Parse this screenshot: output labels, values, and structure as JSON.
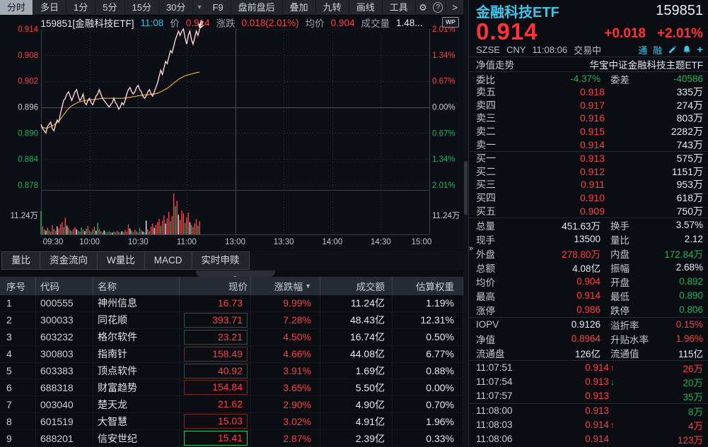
{
  "toolbar": {
    "periods": [
      "分时",
      "多日",
      "1分",
      "5分",
      "15分",
      "30分"
    ],
    "tools": [
      "F9",
      "盘前盘后",
      "叠加",
      "九转",
      "画线",
      "工具"
    ]
  },
  "icons": {
    "dropdown": "▾",
    "gear": "⚙",
    "help": "?",
    "collapse": ">",
    "expand": "»",
    "handle": "»",
    "sort_desc": "▼",
    "arrow_up": "↑",
    "arrow_down": "↓",
    "wp": "WP",
    "badge_tong": "通",
    "badge_rong": "融",
    "plus": "+"
  },
  "chart_info": {
    "symbol": "159851[金融科技ETF]",
    "time": "11:08",
    "price_label": "价",
    "price": "0.914",
    "change_label": "涨跌",
    "change": "0.018(2.01%)",
    "avg_label": "均价",
    "avg": "0.904",
    "vol_label": "成交量",
    "vol": "1.48..."
  },
  "chart_data": {
    "type": "line",
    "title": "159851 金融科技ETF 分时走势",
    "x_labels": [
      "09:30",
      "10:00",
      "10:30",
      "11:00",
      "13:00",
      "13:30",
      "14:00",
      "14:30",
      "15:00"
    ],
    "session_minutes": 240,
    "preclose": 0.896,
    "ylim": [
      0.878,
      0.914
    ],
    "price_ticks": [
      0.914,
      0.908,
      0.902,
      0.896,
      0.89,
      0.884,
      0.878
    ],
    "price_tick_labels": [
      "0.914",
      "0.908",
      "0.902",
      "0.896",
      "0.890",
      "0.884",
      "0.878"
    ],
    "pct_tick_labels": [
      "2.01%",
      "1.34%",
      "0.67%",
      "0.00%",
      "0.67%",
      "1.34%",
      "2.01%"
    ],
    "vol_max_label": "11.24万",
    "vol_scale_max": 11.24,
    "colors": {
      "up": "#ff4147",
      "down": "#1fb35f",
      "flat": "#c8ccd2",
      "price_line": "#f2f3f5",
      "avg_line": "#eda83d"
    },
    "price": [
      0.892,
      0.891,
      0.8905,
      0.89,
      0.8915,
      0.892,
      0.8925,
      0.891,
      0.8905,
      0.892,
      0.893,
      0.8925,
      0.8945,
      0.896,
      0.8975,
      0.898,
      0.899,
      0.8995,
      0.8985,
      0.8975,
      0.8985,
      0.8995,
      0.9,
      0.8985,
      0.8975,
      0.898,
      0.899,
      0.897,
      0.8965,
      0.8975,
      0.898,
      0.897,
      0.8965,
      0.8975,
      0.8985,
      0.899,
      0.9,
      0.899,
      0.898,
      0.8975,
      0.897,
      0.8965,
      0.896,
      0.8965,
      0.897,
      0.898,
      0.897,
      0.8965,
      0.8955,
      0.896,
      0.897,
      0.8965,
      0.8975,
      0.899,
      0.9,
      0.9005,
      0.8995,
      0.899,
      0.8995,
      0.9005,
      0.901,
      0.9,
      0.8995,
      0.8985,
      0.898,
      0.8985,
      0.8995,
      0.9,
      0.899,
      0.8985,
      0.8995,
      0.9005,
      0.9015,
      0.903,
      0.9045,
      0.9035,
      0.905,
      0.9065,
      0.906,
      0.9075,
      0.909,
      0.9085,
      0.91,
      0.9115,
      0.9125,
      0.9135,
      0.9125,
      0.9135,
      0.914,
      0.912,
      0.9105,
      0.9125,
      0.9135,
      0.9115,
      0.9105,
      0.912,
      0.9135,
      0.9125,
      0.914
    ],
    "avg": [
      0.8915,
      0.8913,
      0.8912,
      0.8911,
      0.8912,
      0.8913,
      0.8915,
      0.8917,
      0.8919,
      0.8921,
      0.8924,
      0.8928,
      0.8932,
      0.8937,
      0.8942,
      0.8947,
      0.8952,
      0.8956,
      0.896,
      0.8963,
      0.8965,
      0.8967,
      0.8969,
      0.8971,
      0.8972,
      0.8973,
      0.8974,
      0.8975,
      0.8975,
      0.8976,
      0.8976,
      0.8977,
      0.8977,
      0.8977,
      0.8978,
      0.8978,
      0.8979,
      0.8979,
      0.898,
      0.898,
      0.898,
      0.898,
      0.898,
      0.898,
      0.898,
      0.898,
      0.898,
      0.898,
      0.898,
      0.898,
      0.898,
      0.898,
      0.8981,
      0.8981,
      0.8982,
      0.8982,
      0.8983,
      0.8984,
      0.8984,
      0.8985,
      0.8986,
      0.8986,
      0.8987,
      0.8987,
      0.8988,
      0.8988,
      0.8988,
      0.8989,
      0.8989,
      0.899,
      0.899,
      0.8991,
      0.8992,
      0.8993,
      0.8995,
      0.8997,
      0.8999,
      0.9001,
      0.9003,
      0.9006,
      0.9009,
      0.9012,
      0.9015,
      0.9018,
      0.9021,
      0.9024,
      0.9026,
      0.9028,
      0.903,
      0.9032,
      0.9033,
      0.9034,
      0.9035,
      0.9036,
      0.9037,
      0.9038,
      0.9039,
      0.904,
      0.904
    ],
    "volume": [
      [
        0,
        6.5,
        "g"
      ],
      [
        1,
        2.2,
        "r"
      ],
      [
        2,
        1.4,
        "g"
      ],
      [
        3,
        1.0,
        "w"
      ],
      [
        4,
        1.8,
        "r"
      ],
      [
        5,
        1.2,
        "g"
      ],
      [
        6,
        0.8,
        "r"
      ],
      [
        7,
        2.6,
        "r"
      ],
      [
        8,
        1.5,
        "g"
      ],
      [
        9,
        1.0,
        "r"
      ],
      [
        10,
        2.2,
        "w"
      ],
      [
        11,
        1.6,
        "r"
      ],
      [
        12,
        2.8,
        "r"
      ],
      [
        13,
        3.4,
        "r"
      ],
      [
        14,
        2.0,
        "g"
      ],
      [
        15,
        4.6,
        "r"
      ],
      [
        16,
        2.4,
        "w"
      ],
      [
        17,
        1.8,
        "r"
      ],
      [
        18,
        1.2,
        "g"
      ],
      [
        19,
        0.9,
        "g"
      ],
      [
        20,
        1.5,
        "r"
      ],
      [
        21,
        2.0,
        "r"
      ],
      [
        22,
        1.4,
        "w"
      ],
      [
        23,
        1.0,
        "g"
      ],
      [
        24,
        0.8,
        "r"
      ],
      [
        25,
        1.9,
        "g"
      ],
      [
        26,
        1.3,
        "r"
      ],
      [
        27,
        0.9,
        "w"
      ],
      [
        28,
        1.6,
        "g"
      ],
      [
        29,
        2.3,
        "r"
      ],
      [
        30,
        1.1,
        "g"
      ],
      [
        31,
        0.7,
        "r"
      ],
      [
        32,
        1.4,
        "g"
      ],
      [
        33,
        2.1,
        "r"
      ],
      [
        34,
        1.0,
        "w"
      ],
      [
        35,
        3.2,
        "g"
      ],
      [
        36,
        1.5,
        "r"
      ],
      [
        37,
        0.9,
        "g"
      ],
      [
        38,
        0.6,
        "r"
      ],
      [
        39,
        1.1,
        "w"
      ],
      [
        40,
        0.8,
        "g"
      ],
      [
        41,
        0.5,
        "r"
      ],
      [
        42,
        0.9,
        "g"
      ],
      [
        43,
        0.7,
        "r"
      ],
      [
        44,
        0.5,
        "w"
      ],
      [
        45,
        0.8,
        "g"
      ],
      [
        46,
        0.6,
        "r"
      ],
      [
        47,
        1.0,
        "r"
      ],
      [
        48,
        0.7,
        "g"
      ],
      [
        49,
        0.5,
        "r"
      ],
      [
        50,
        0.9,
        "w"
      ],
      [
        51,
        0.6,
        "g"
      ],
      [
        52,
        1.2,
        "r"
      ],
      [
        53,
        0.8,
        "r"
      ],
      [
        54,
        2.8,
        "r"
      ],
      [
        55,
        1.6,
        "w"
      ],
      [
        56,
        1.0,
        "g"
      ],
      [
        57,
        0.7,
        "r"
      ],
      [
        58,
        1.3,
        "r"
      ],
      [
        59,
        0.9,
        "g"
      ],
      [
        60,
        0.6,
        "r"
      ],
      [
        61,
        1.8,
        "g"
      ],
      [
        62,
        1.1,
        "r"
      ],
      [
        63,
        0.8,
        "w"
      ],
      [
        64,
        0.6,
        "g"
      ],
      [
        65,
        3.8,
        "w"
      ],
      [
        66,
        1.4,
        "r"
      ],
      [
        67,
        0.9,
        "g"
      ],
      [
        68,
        2.2,
        "r"
      ],
      [
        69,
        3.0,
        "r"
      ],
      [
        70,
        1.8,
        "w"
      ],
      [
        71,
        2.6,
        "r"
      ],
      [
        72,
        3.4,
        "r"
      ],
      [
        73,
        4.2,
        "r"
      ],
      [
        74,
        2.4,
        "g"
      ],
      [
        75,
        3.8,
        "r"
      ],
      [
        76,
        5.2,
        "r"
      ],
      [
        77,
        3.0,
        "w"
      ],
      [
        78,
        4.4,
        "r"
      ],
      [
        79,
        6.2,
        "r"
      ],
      [
        80,
        3.6,
        "g"
      ],
      [
        81,
        5.0,
        "r"
      ],
      [
        82,
        11.24,
        "r"
      ],
      [
        83,
        7.8,
        "g"
      ],
      [
        84,
        9.2,
        "r"
      ],
      [
        85,
        5.4,
        "w"
      ],
      [
        86,
        4.0,
        "r"
      ],
      [
        87,
        6.6,
        "r"
      ],
      [
        88,
        5.8,
        "r"
      ],
      [
        89,
        3.2,
        "g"
      ],
      [
        90,
        4.6,
        "r"
      ],
      [
        91,
        6.0,
        "r"
      ],
      [
        92,
        3.4,
        "w"
      ],
      [
        93,
        2.6,
        "g"
      ],
      [
        94,
        2.0,
        "r"
      ],
      [
        95,
        3.0,
        "r"
      ],
      [
        96,
        4.2,
        "r"
      ],
      [
        97,
        2.4,
        "g"
      ],
      [
        98,
        3.6,
        "r"
      ]
    ]
  },
  "tabs": [
    "量比",
    "资金流向",
    "W量比",
    "MACD",
    "实时申赎"
  ],
  "table": {
    "headers": [
      "序号",
      "代码",
      "名称",
      "现价",
      "涨跌幅",
      "成交额",
      "估算权重"
    ],
    "sorted_header_index": 4,
    "rows": [
      {
        "seq": "1",
        "code": "000555",
        "name": "神州信息",
        "price": "16.73",
        "change": "9.99%",
        "turnover": "11.24亿",
        "weight": "1.19%",
        "box": "none"
      },
      {
        "seq": "2",
        "code": "300033",
        "name": "同花顺",
        "price": "393.71",
        "change": "7.28%",
        "turnover": "48.43亿",
        "weight": "12.31%",
        "box": "green"
      },
      {
        "seq": "3",
        "code": "603232",
        "name": "格尔软件",
        "price": "23.21",
        "change": "4.50%",
        "turnover": "16.74亿",
        "weight": "0.50%",
        "box": "green"
      },
      {
        "seq": "4",
        "code": "300803",
        "name": "指南针",
        "price": "158.49",
        "change": "4.66%",
        "turnover": "44.08亿",
        "weight": "6.77%",
        "box": "red"
      },
      {
        "seq": "5",
        "code": "603383",
        "name": "顶点软件",
        "price": "40.92",
        "change": "3.91%",
        "turnover": "1.69亿",
        "weight": "0.88%",
        "box": "green"
      },
      {
        "seq": "6",
        "code": "688318",
        "name": "财富趋势",
        "price": "154.84",
        "change": "3.65%",
        "turnover": "5.50亿",
        "weight": "0.00%",
        "box": "red"
      },
      {
        "seq": "7",
        "code": "003040",
        "name": "楚天龙",
        "price": "21.62",
        "change": "2.90%",
        "turnover": "4.90亿",
        "weight": "0.70%",
        "box": "none"
      },
      {
        "seq": "8",
        "code": "601519",
        "name": "大智慧",
        "price": "15.03",
        "change": "3.02%",
        "turnover": "4.91亿",
        "weight": "1.96%",
        "box": "red"
      },
      {
        "seq": "9",
        "code": "688201",
        "name": "信安世纪",
        "price": "15.41",
        "change": "2.87%",
        "turnover": "2.39亿",
        "weight": "0.33%",
        "box": "bright"
      }
    ]
  },
  "panel": {
    "name": "金融科技ETF",
    "code": "159851",
    "price": "0.914",
    "change": "+0.018",
    "change_pct": "+2.01%",
    "exchange": "SZSE",
    "currency": "CNY",
    "time": "11:08:06",
    "status": "交易中",
    "nav_label": "净值走势",
    "nav_value": "华宝中证金融科技主题ETF",
    "weibi_label": "委比",
    "weibi": "-4.37%",
    "weicha_label": "委差",
    "weicha": "-40586",
    "asks": [
      {
        "label": "卖五",
        "price": "0.918",
        "vol": "335万"
      },
      {
        "label": "卖四",
        "price": "0.917",
        "vol": "274万"
      },
      {
        "label": "卖三",
        "price": "0.916",
        "vol": "803万"
      },
      {
        "label": "卖二",
        "price": "0.915",
        "vol": "2282万"
      },
      {
        "label": "卖一",
        "price": "0.914",
        "vol": "743万"
      }
    ],
    "bids": [
      {
        "label": "买一",
        "price": "0.913",
        "vol": "575万"
      },
      {
        "label": "买二",
        "price": "0.912",
        "vol": "1151万"
      },
      {
        "label": "买三",
        "price": "0.911",
        "vol": "953万"
      },
      {
        "label": "买四",
        "price": "0.910",
        "vol": "618万"
      },
      {
        "label": "买五",
        "price": "0.909",
        "vol": "750万"
      }
    ],
    "stats": [
      [
        {
          "l": "总量",
          "v": "451.63万",
          "c": "w"
        },
        {
          "l": "换手",
          "v": "3.57%",
          "c": "w"
        }
      ],
      [
        {
          "l": "现手",
          "v": "13500",
          "c": "w"
        },
        {
          "l": "量比",
          "v": "2.12",
          "c": "w"
        }
      ],
      [
        {
          "l": "外盘",
          "v": "278.80万",
          "c": "r"
        },
        {
          "l": "内盘",
          "v": "172.84万",
          "c": "g"
        }
      ],
      [
        {
          "l": "总额",
          "v": "4.08亿",
          "c": "w"
        },
        {
          "l": "振幅",
          "v": "2.68%",
          "c": "w"
        }
      ],
      [
        {
          "l": "均价",
          "v": "0.904",
          "c": "r"
        },
        {
          "l": "开盘",
          "v": "0.892",
          "c": "g"
        }
      ],
      [
        {
          "l": "最高",
          "v": "0.914",
          "c": "r"
        },
        {
          "l": "最低",
          "v": "0.890",
          "c": "g"
        }
      ],
      [
        {
          "l": "涨停",
          "v": "0.986",
          "c": "r"
        },
        {
          "l": "跌停",
          "v": "0.806",
          "c": "g"
        }
      ]
    ],
    "iopv": [
      [
        {
          "l": "IOPV",
          "v": "0.9126",
          "c": "w"
        },
        {
          "l": "溢折率",
          "v": "0.15%",
          "c": "r"
        }
      ],
      [
        {
          "l": "净值",
          "v": "0.8964",
          "c": "r"
        },
        {
          "l": "升贴水率",
          "v": "1.96%",
          "c": "r"
        }
      ],
      [
        {
          "l": "流通盘",
          "v": "126亿",
          "c": "w"
        },
        {
          "l": "流通值",
          "v": "115亿",
          "c": "w"
        }
      ]
    ],
    "ticks": [
      {
        "t": "11:07:51",
        "p": "0.914",
        "a": "up",
        "v": "26万",
        "vc": "r"
      },
      {
        "t": "11:07:54",
        "p": "0.913",
        "a": "down",
        "v": "20万",
        "vc": "g"
      },
      {
        "t": "11:07:57",
        "p": "0.913",
        "a": "",
        "v": "35万",
        "vc": "g"
      },
      {
        "t": "11:08:00",
        "p": "0.913",
        "a": "",
        "v": "8万",
        "vc": "g"
      },
      {
        "t": "11:08:03",
        "p": "0.914",
        "a": "up",
        "v": "4万",
        "vc": "r"
      },
      {
        "t": "11:08:06",
        "p": "0.914",
        "a": "",
        "v": "123万",
        "vc": "r"
      }
    ],
    "ticks_divider_after": 2
  }
}
